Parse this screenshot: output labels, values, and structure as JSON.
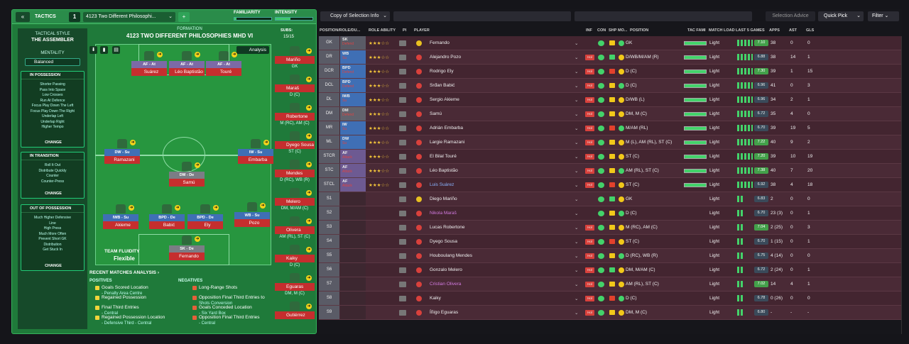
{
  "header": {
    "back": "«",
    "title": "TACTICS",
    "slot": "1",
    "tactic_name": "4123 Two Different Philosophi...",
    "add": "+",
    "familiarity": "FAMILIARITY",
    "intensity": "INTENSITY",
    "familiarity_value": 0.05,
    "intensity_value": 0.4
  },
  "sidebar": {
    "style_label": "TACTICAL STYLE",
    "style_value": "THE ASSEMBLER",
    "mentality_label": "MENTALITY",
    "mentality_value": "Balanced",
    "in_possession": {
      "title": "IN POSSESSION",
      "items": [
        "Shorter Passing",
        "Pass Into Space",
        "Low Crosses",
        "Run At Defence",
        "Focus Play Down The Left",
        "Focus Play Down The Right",
        "Underlap Left",
        "Underlap Right",
        "Higher Tempo"
      ],
      "change": "CHANGE"
    },
    "in_transition": {
      "title": "IN TRANSITION",
      "items": [
        "Roll It Out",
        "Distribute Quickly",
        "Counter",
        "Counter-Press"
      ],
      "change": "CHANGE"
    },
    "out_of_possession": {
      "title": "OUT OF POSSESSION",
      "items": [
        "Much Higher Defensive",
        "Line",
        "High Press",
        "Much More Often",
        "Prevent Short GK",
        "Distribution",
        "Get Stuck In"
      ],
      "change": "CHANGE"
    }
  },
  "formation": {
    "label": "FORMATION",
    "name": "4123 TWO DIFFERENT PHILOSOPHIES MHD VI",
    "subs_label": "SUBS:",
    "subs_value": "15/15",
    "analysis": "Analysis",
    "players": [
      {
        "role": "AF - At",
        "name": "Suárez"
      },
      {
        "role": "AF - At",
        "name": "Léo Baptistão"
      },
      {
        "role": "AF - At",
        "name": "Touré"
      },
      {
        "role": "DW - Su",
        "name": "Ramazani"
      },
      {
        "role": "IW - Su",
        "name": "Embarba"
      },
      {
        "role": "DM - De",
        "name": "Samú"
      },
      {
        "role": "IWB - Su",
        "name": "Akieme"
      },
      {
        "role": "BPD - De",
        "name": "Babić"
      },
      {
        "role": "BPD - De",
        "name": "Ely"
      },
      {
        "role": "WB - Su",
        "name": "Pozo"
      },
      {
        "role": "SK - De",
        "name": "Fernando"
      }
    ]
  },
  "subs": [
    {
      "name": "Mariño",
      "pos": "GK"
    },
    {
      "name": "Maraš",
      "pos": "D (C)"
    },
    {
      "name": "Robertone",
      "pos": "M (RC), AM (C)"
    },
    {
      "name": "Dyego Sousa",
      "pos": "ST (C)"
    },
    {
      "name": "Mendes",
      "pos": "D (RC), WB (R)"
    },
    {
      "name": "Melero",
      "pos": "DM, M/AM (C)"
    },
    {
      "name": "Olivera",
      "pos": "AM (RL), ST (C)"
    },
    {
      "name": "Kaiky",
      "pos": "D (C)"
    },
    {
      "name": "Eguaras",
      "pos": "DM, M (C)"
    },
    {
      "name": "Gutiérrez",
      "pos": ""
    }
  ],
  "fluidity": {
    "label": "TEAM FLUIDITY",
    "value": "Flexible"
  },
  "recent": {
    "title": "RECENT MATCHES ANALYSIS ›",
    "positives_label": "POSITIVES",
    "negatives_label": "NEGATIVES",
    "positives": [
      {
        "t": "Goals Scored Location",
        "s": "- Penalty Area Centre"
      },
      {
        "t": "Regained Possession",
        "s": ""
      },
      {
        "t": "Final Third Entries",
        "s": "- Central"
      },
      {
        "t": "Regained Possession Location",
        "s": "- Defensive Third - Central"
      }
    ],
    "negatives": [
      {
        "t": "Long-Range Shots",
        "s": ""
      },
      {
        "t": "Opposition Final Third Entries to",
        "s": "Shots Conversion"
      },
      {
        "t": "Goals Conceded Location",
        "s": "- Six Yard Box"
      },
      {
        "t": "Opposition Final Third Entries",
        "s": "- Central"
      }
    ]
  },
  "toolbar": {
    "selection": "Copy of Selection Info",
    "selection_advice": "Selection Advice",
    "quick_pick": "Quick Pick",
    "filter": "Filter"
  },
  "table": {
    "headers": {
      "pos": "POSITION/ROLE/DU...",
      "role_ability": "ROLE ABILITY",
      "pi": "PI",
      "player": "PLAYER",
      "inf": "INF",
      "con": "CON",
      "shp": "SHP",
      "mo": "MO...",
      "position": "POSITION",
      "tac_fam": "TAC FAMI",
      "match_load": "MATCH LOAD",
      "last5": "LAST 5 GAMES",
      "apps": "APPS",
      "ast": "AST",
      "gls": "GLS"
    },
    "rows": [
      {
        "pos": "GK",
        "role": "SK",
        "duty": "Defend",
        "stars": "★★★☆☆",
        "name": "Fernando",
        "posn": "GK",
        "ml": "Light",
        "avg": "7.10",
        "apps": "38",
        "ast": "0",
        "gls": "0",
        "inf": ""
      },
      {
        "pos": "DR",
        "role": "WB",
        "duty": "Su",
        "stars": "★★★☆☆",
        "name": "Alejandro Pozo",
        "posn": "D/WB/M/AM (R)",
        "ml": "Light",
        "avg": "6.88",
        "apps": "38",
        "ast": "14",
        "gls": "1",
        "inf": "Hol"
      },
      {
        "pos": "DCR",
        "role": "BPD",
        "duty": "Defend",
        "stars": "★★★☆☆",
        "name": "Rodrigo Ely",
        "posn": "D (C)",
        "ml": "Light",
        "avg": "7.30",
        "apps": "39",
        "ast": "1",
        "gls": "15",
        "inf": "Hol"
      },
      {
        "pos": "DCL",
        "role": "BPD",
        "duty": "Defend",
        "stars": "★★★☆☆",
        "name": "Srđan Babić",
        "posn": "D (C)",
        "ml": "Light",
        "avg": "6.96",
        "apps": "41",
        "ast": "0",
        "gls": "3",
        "inf": "Hol"
      },
      {
        "pos": "DL",
        "role": "IWB",
        "duty": "Su",
        "stars": "★★★☆☆",
        "name": "Sergio Akieme",
        "posn": "D/WB (L)",
        "ml": "Light",
        "avg": "6.96",
        "apps": "34",
        "ast": "2",
        "gls": "1",
        "inf": "Hol"
      },
      {
        "pos": "DM",
        "role": "DM",
        "duty": "Defend",
        "stars": "★★★☆☆",
        "name": "Samú",
        "posn": "DM, M (C)",
        "ml": "Light",
        "avg": "6.72",
        "apps": "35",
        "ast": "4",
        "gls": "0",
        "inf": "Hol"
      },
      {
        "pos": "MR",
        "role": "IW",
        "duty": "Su",
        "stars": "★★★☆☆",
        "name": "Adrián Embarba",
        "posn": "M/AM (RL)",
        "ml": "Light",
        "avg": "6.70",
        "apps": "39",
        "ast": "19",
        "gls": "5",
        "inf": "Hol"
      },
      {
        "pos": "ML",
        "role": "DW",
        "duty": "Su",
        "stars": "★★★☆☆",
        "name": "Largie Ramazani",
        "posn": "M (L), AM (RL), ST (C)",
        "ml": "Light",
        "avg": "7.22",
        "apps": "40",
        "ast": "9",
        "gls": "2",
        "inf": "Hol"
      },
      {
        "pos": "STCR",
        "role": "AF",
        "duty": "Attack",
        "stars": "★★★☆☆",
        "name": "El Bilal Touré",
        "posn": "ST (C)",
        "ml": "Light",
        "avg": "7.20",
        "apps": "39",
        "ast": "10",
        "gls": "19",
        "inf": "Hol"
      },
      {
        "pos": "STC",
        "role": "AF",
        "duty": "Attack",
        "stars": "★★★☆☆",
        "name": "Léo Baptistão",
        "posn": "AM (RL), ST (C)",
        "ml": "Light",
        "avg": "7.38",
        "apps": "40",
        "ast": "7",
        "gls": "20",
        "inf": "Hol"
      },
      {
        "pos": "STCL",
        "role": "AF",
        "duty": "Attack",
        "stars": "★★★☆☆",
        "name": "Luis Suárez",
        "posn": "ST (C)",
        "ml": "Light",
        "avg": "6.92",
        "apps": "38",
        "ast": "4",
        "gls": "18",
        "inf": "Hol"
      },
      {
        "pos": "S1",
        "role": "",
        "duty": "",
        "stars": "",
        "name": "Diego Mariño",
        "posn": "GK",
        "ml": "Light",
        "avg": "6.83",
        "apps": "2",
        "ast": "0",
        "gls": "0",
        "inf": ""
      },
      {
        "pos": "S2",
        "role": "",
        "duty": "",
        "stars": "",
        "name": "Nikola Maraš",
        "posn": "D (C)",
        "ml": "Light",
        "avg": "6.70",
        "apps": "23 (3)",
        "ast": "0",
        "gls": "1",
        "inf": ""
      },
      {
        "pos": "S3",
        "role": "",
        "duty": "",
        "stars": "",
        "name": "Lucas Robertone",
        "posn": "M (RC), AM (C)",
        "ml": "Light",
        "avg": "7.04",
        "apps": "2 (25)",
        "ast": "0",
        "gls": "3",
        "inf": "Hol"
      },
      {
        "pos": "S4",
        "role": "",
        "duty": "",
        "stars": "",
        "name": "Dyego Sousa",
        "posn": "ST (C)",
        "ml": "Light",
        "avg": "6.70",
        "apps": "1 (15)",
        "ast": "0",
        "gls": "1",
        "inf": "Hol"
      },
      {
        "pos": "S5",
        "role": "",
        "duty": "",
        "stars": "",
        "name": "Houboulang Mendes",
        "posn": "D (RC), WB (R)",
        "ml": "Light",
        "avg": "6.75",
        "apps": "4 (14)",
        "ast": "0",
        "gls": "0",
        "inf": "Hol"
      },
      {
        "pos": "S6",
        "role": "",
        "duty": "",
        "stars": "",
        "name": "Gonzalo Melero",
        "posn": "DM, M/AM (C)",
        "ml": "Light",
        "avg": "6.72",
        "apps": "2 (24)",
        "ast": "0",
        "gls": "1",
        "inf": "Hol"
      },
      {
        "pos": "S7",
        "role": "",
        "duty": "",
        "stars": "",
        "name": "Cristian Olivera",
        "posn": "AM (RL), ST (C)",
        "ml": "Light",
        "avg": "7.02",
        "apps": "14",
        "ast": "4",
        "gls": "1",
        "inf": "Hol"
      },
      {
        "pos": "S8",
        "role": "",
        "duty": "",
        "stars": "",
        "name": "Kaiky",
        "posn": "D (C)",
        "ml": "Light",
        "avg": "6.78",
        "apps": "0 (26)",
        "ast": "0",
        "gls": "0",
        "inf": "Hol"
      },
      {
        "pos": "S9",
        "role": "",
        "duty": "",
        "stars": "",
        "name": "Íñigo Eguaras",
        "posn": "DM, M (C)",
        "ml": "Light",
        "avg": "6.80",
        "apps": "-",
        "ast": "-",
        "gls": "-",
        "inf": "Hol"
      }
    ]
  }
}
